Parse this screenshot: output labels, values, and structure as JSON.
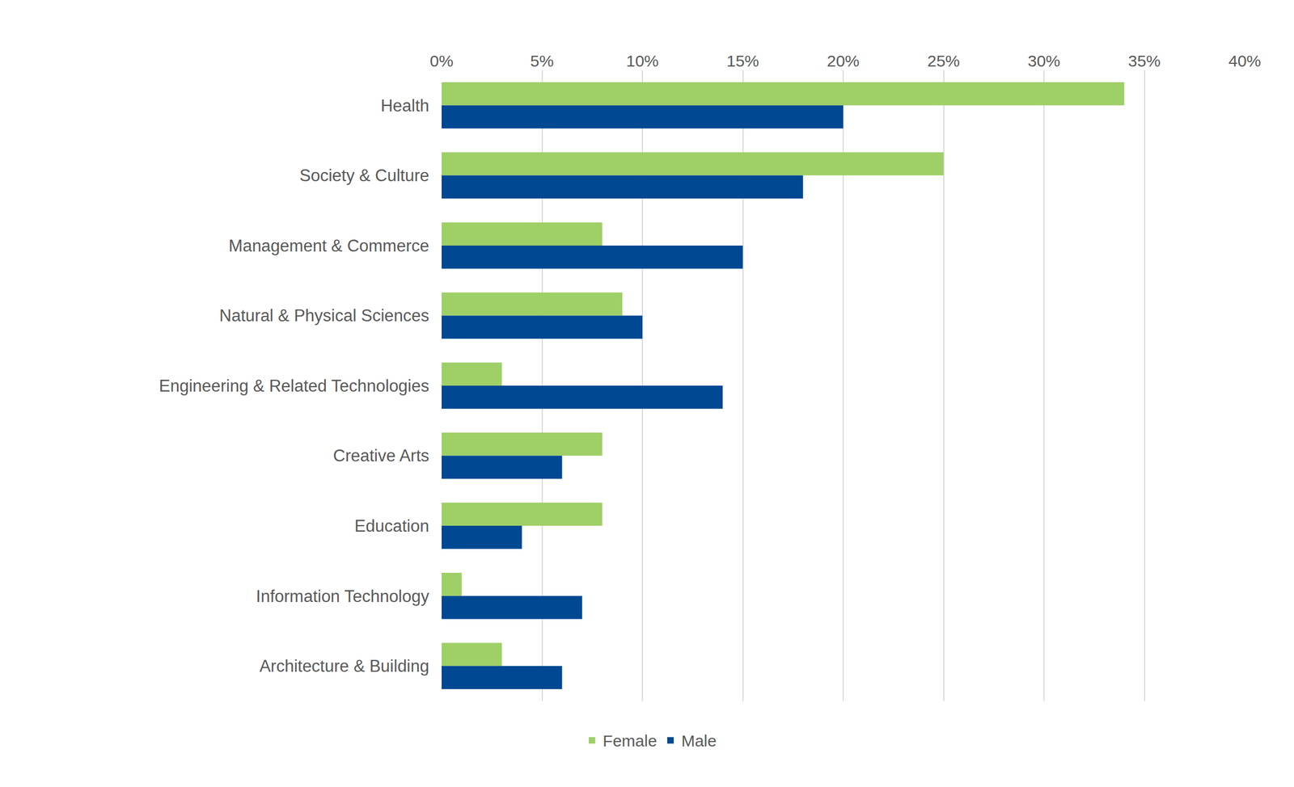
{
  "chart_data": {
    "type": "bar",
    "orientation": "horizontal",
    "categories": [
      "Health",
      "Society & Culture",
      "Management & Commerce",
      "Natural & Physical Sciences",
      "Engineering & Related Technologies",
      "Creative Arts",
      "Education",
      "Information Technology",
      "Architecture & Building"
    ],
    "series": [
      {
        "name": "Female",
        "color": "#9fcf67",
        "values": [
          34,
          25,
          8,
          9,
          3,
          8,
          8,
          1,
          3
        ]
      },
      {
        "name": "Male",
        "color": "#004892",
        "values": [
          20,
          18,
          15,
          10,
          14,
          6,
          4,
          7,
          6
        ]
      }
    ],
    "xlim": [
      0,
      40
    ],
    "xticks": [
      {
        "value": 0,
        "label": "0%"
      },
      {
        "value": 5,
        "label": "5%"
      },
      {
        "value": 10,
        "label": "10%"
      },
      {
        "value": 15,
        "label": "15%"
      },
      {
        "value": 20,
        "label": "20%"
      },
      {
        "value": 25,
        "label": "25%"
      },
      {
        "value": 30,
        "label": "30%"
      },
      {
        "value": 35,
        "label": "35%"
      },
      {
        "value": 40,
        "label": "40%"
      }
    ],
    "grid": true,
    "legend": "bottom"
  }
}
